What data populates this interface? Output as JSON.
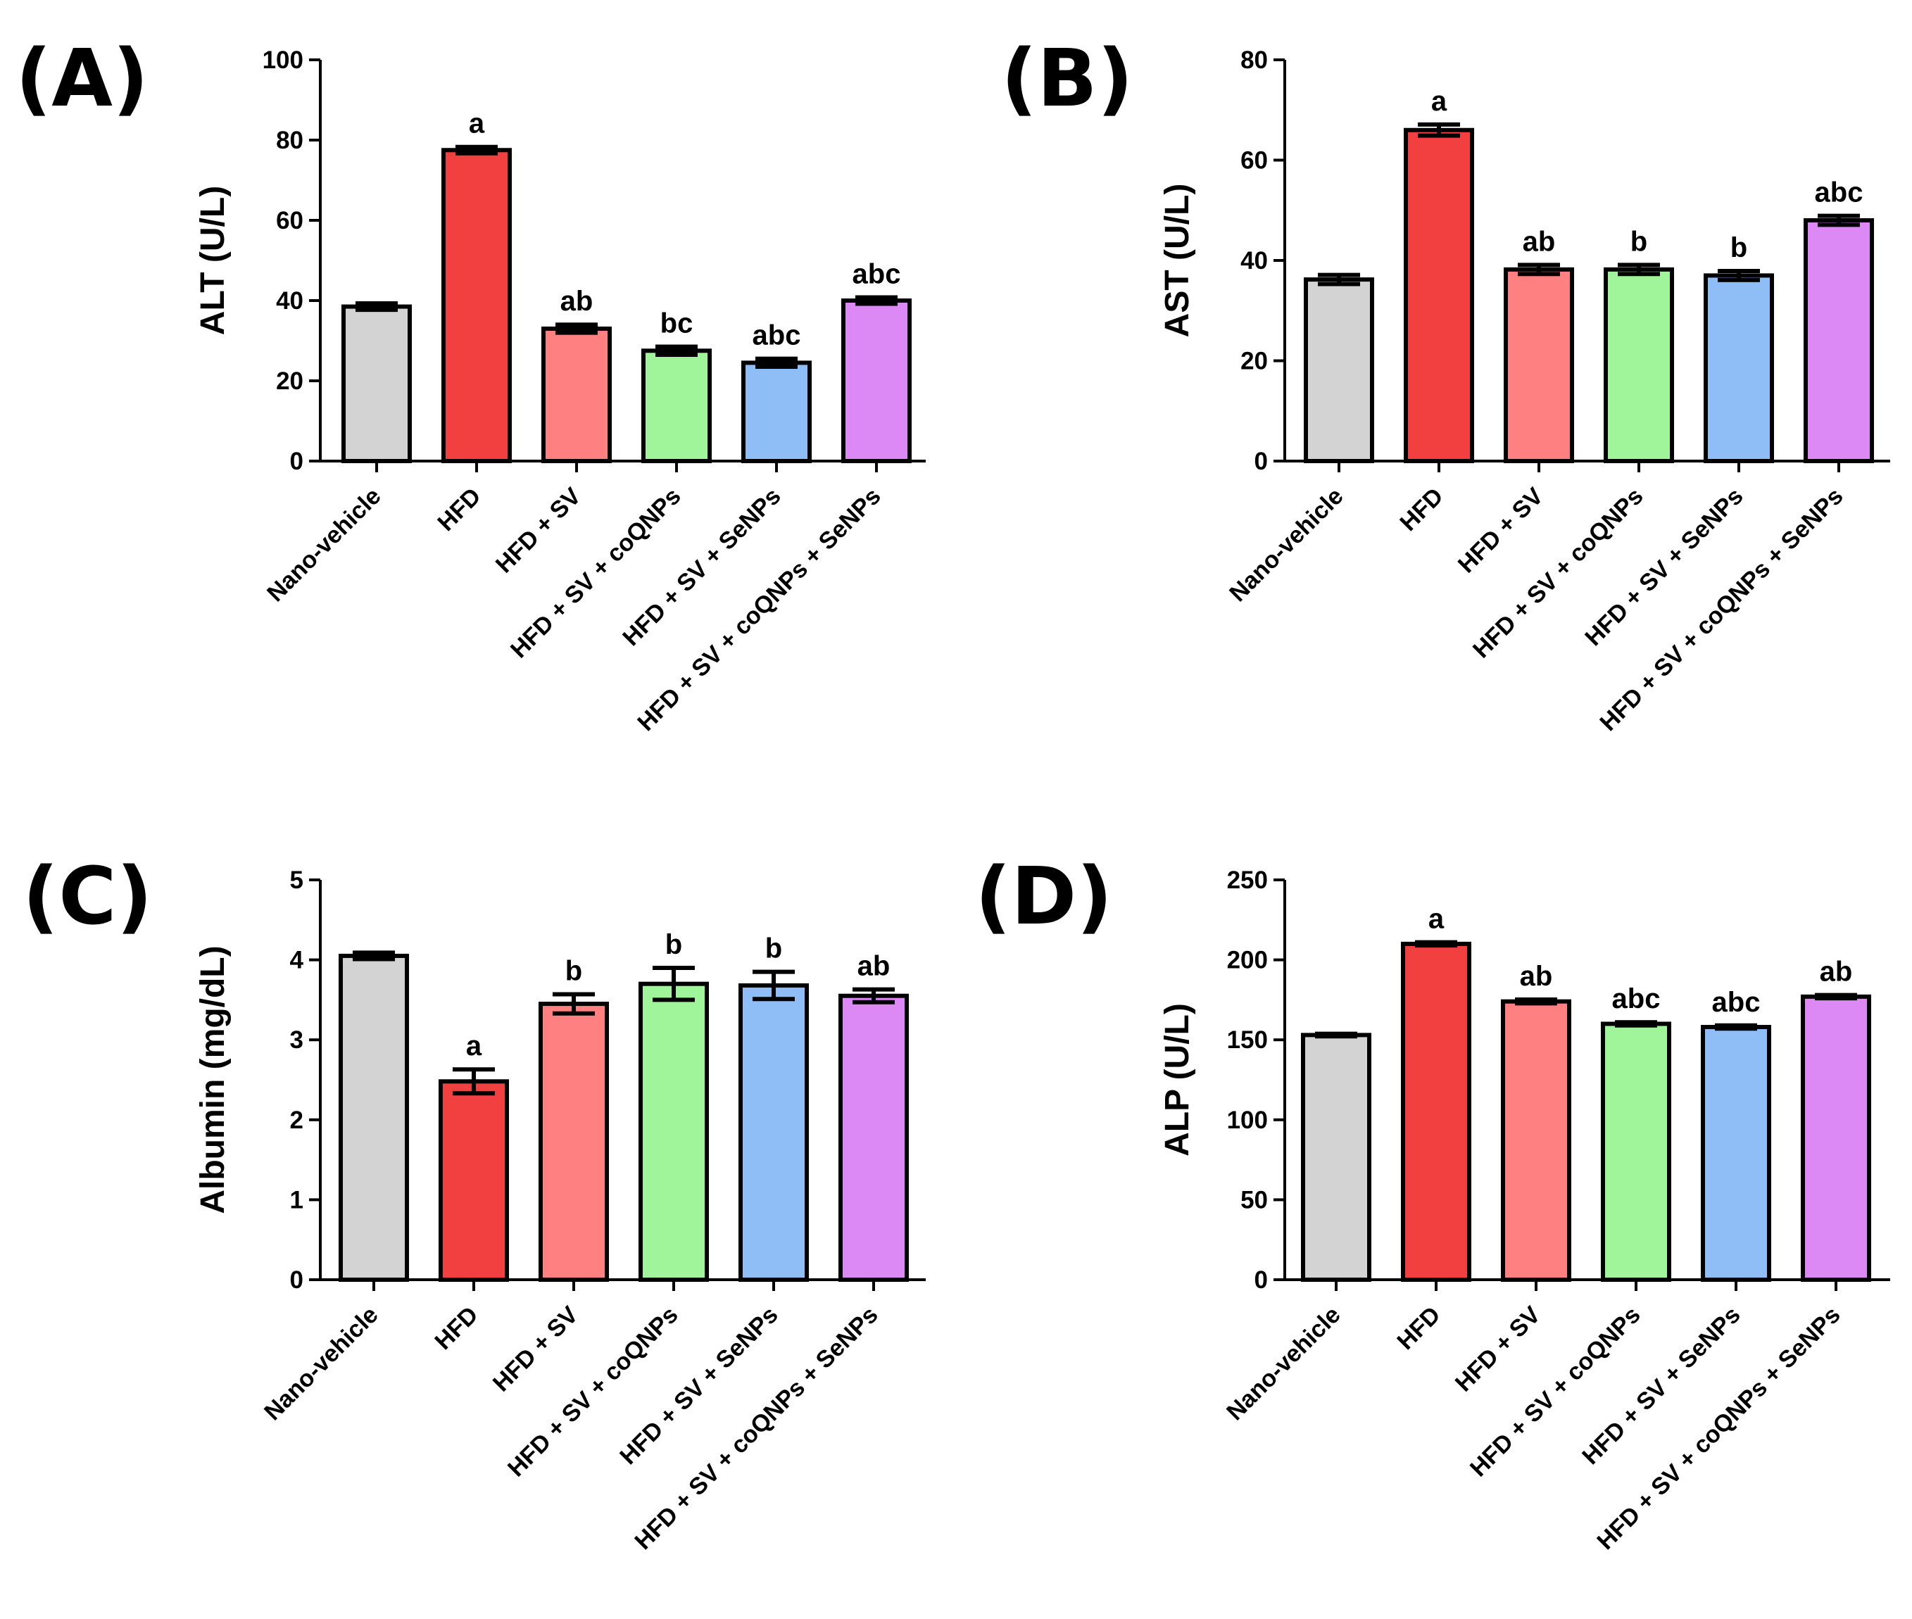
{
  "chart_data": [
    {
      "panel": "(A)",
      "type": "bar",
      "ylabel": "ALT (U/L)",
      "xlabel": "",
      "ylim": [
        0,
        100
      ],
      "yticks": [
        0,
        20,
        40,
        60,
        80,
        100
      ],
      "categories": [
        "Nano-vehicle",
        "HFD",
        "HFD + SV",
        "HFD + SV + coQNPs",
        "HFD + SV + SeNPs",
        "HFD + SV + coQNPs + SeNPs"
      ],
      "values": [
        38.5,
        77.5,
        33,
        27.5,
        24.5,
        40
      ],
      "errors": [
        0.8,
        0.8,
        1.0,
        1.0,
        1.0,
        0.8
      ],
      "annotations": [
        "",
        "a",
        "ab",
        "bc",
        "abc",
        "abc"
      ],
      "colors": [
        "#d3d3d3",
        "#f24040",
        "#ff8080",
        "#a0f59a",
        "#8fbef7",
        "#dc88f5"
      ]
    },
    {
      "panel": "(B)",
      "type": "bar",
      "ylabel": "AST (U/L)",
      "xlabel": "",
      "ylim": [
        0,
        80
      ],
      "yticks": [
        0,
        20,
        40,
        60,
        80
      ],
      "categories": [
        "Nano-vehicle",
        "HFD",
        "HFD + SV",
        "HFD + SV + coQNPs",
        "HFD + SV + SeNPs",
        "HFD + SV + coQNPs + SeNPs"
      ],
      "values": [
        36.2,
        66,
        38.2,
        38.2,
        37,
        48
      ],
      "errors": [
        0.9,
        1.1,
        0.9,
        0.9,
        0.9,
        0.9
      ],
      "annotations": [
        "",
        "a",
        "ab",
        "b",
        "b",
        "abc"
      ],
      "colors": [
        "#d3d3d3",
        "#f24040",
        "#ff8080",
        "#a0f59a",
        "#8fbef7",
        "#dc88f5"
      ]
    },
    {
      "panel": "(C)",
      "type": "bar",
      "ylabel": "Albumin (mg/dL)",
      "xlabel": "",
      "ylim": [
        0,
        5
      ],
      "yticks": [
        0,
        1,
        2,
        3,
        4,
        5
      ],
      "categories": [
        "Nano-vehicle",
        "HFD",
        "HFD + SV",
        "HFD + SV + coQNPs",
        "HFD + SV + SeNPs",
        "HFD + SV + coQNPs + SeNPs"
      ],
      "values": [
        4.05,
        2.48,
        3.45,
        3.7,
        3.68,
        3.55
      ],
      "errors": [
        0.04,
        0.15,
        0.12,
        0.2,
        0.17,
        0.08
      ],
      "annotations": [
        "",
        "a",
        "b",
        "b",
        "b",
        "ab"
      ],
      "colors": [
        "#d3d3d3",
        "#f24040",
        "#ff8080",
        "#a0f59a",
        "#8fbef7",
        "#dc88f5"
      ]
    },
    {
      "panel": "(D)",
      "type": "bar",
      "ylabel": "ALP (U/L)",
      "xlabel": "",
      "ylim": [
        0,
        250
      ],
      "yticks": [
        0,
        50,
        100,
        150,
        200,
        250
      ],
      "categories": [
        "Nano-vehicle",
        "HFD",
        "HFD + SV",
        "HFD + SV + coQNPs",
        "HFD + SV + SeNPs",
        "HFD + SV + coQNPs + SeNPs"
      ],
      "values": [
        153,
        210,
        174,
        160,
        158,
        177
      ],
      "errors": [
        0.8,
        1.0,
        1.2,
        1.0,
        1.0,
        1.0
      ],
      "annotations": [
        "",
        "a",
        "ab",
        "abc",
        "abc",
        "ab"
      ],
      "colors": [
        "#d3d3d3",
        "#f24040",
        "#ff8080",
        "#a0f59a",
        "#8fbef7",
        "#dc88f5"
      ]
    }
  ]
}
